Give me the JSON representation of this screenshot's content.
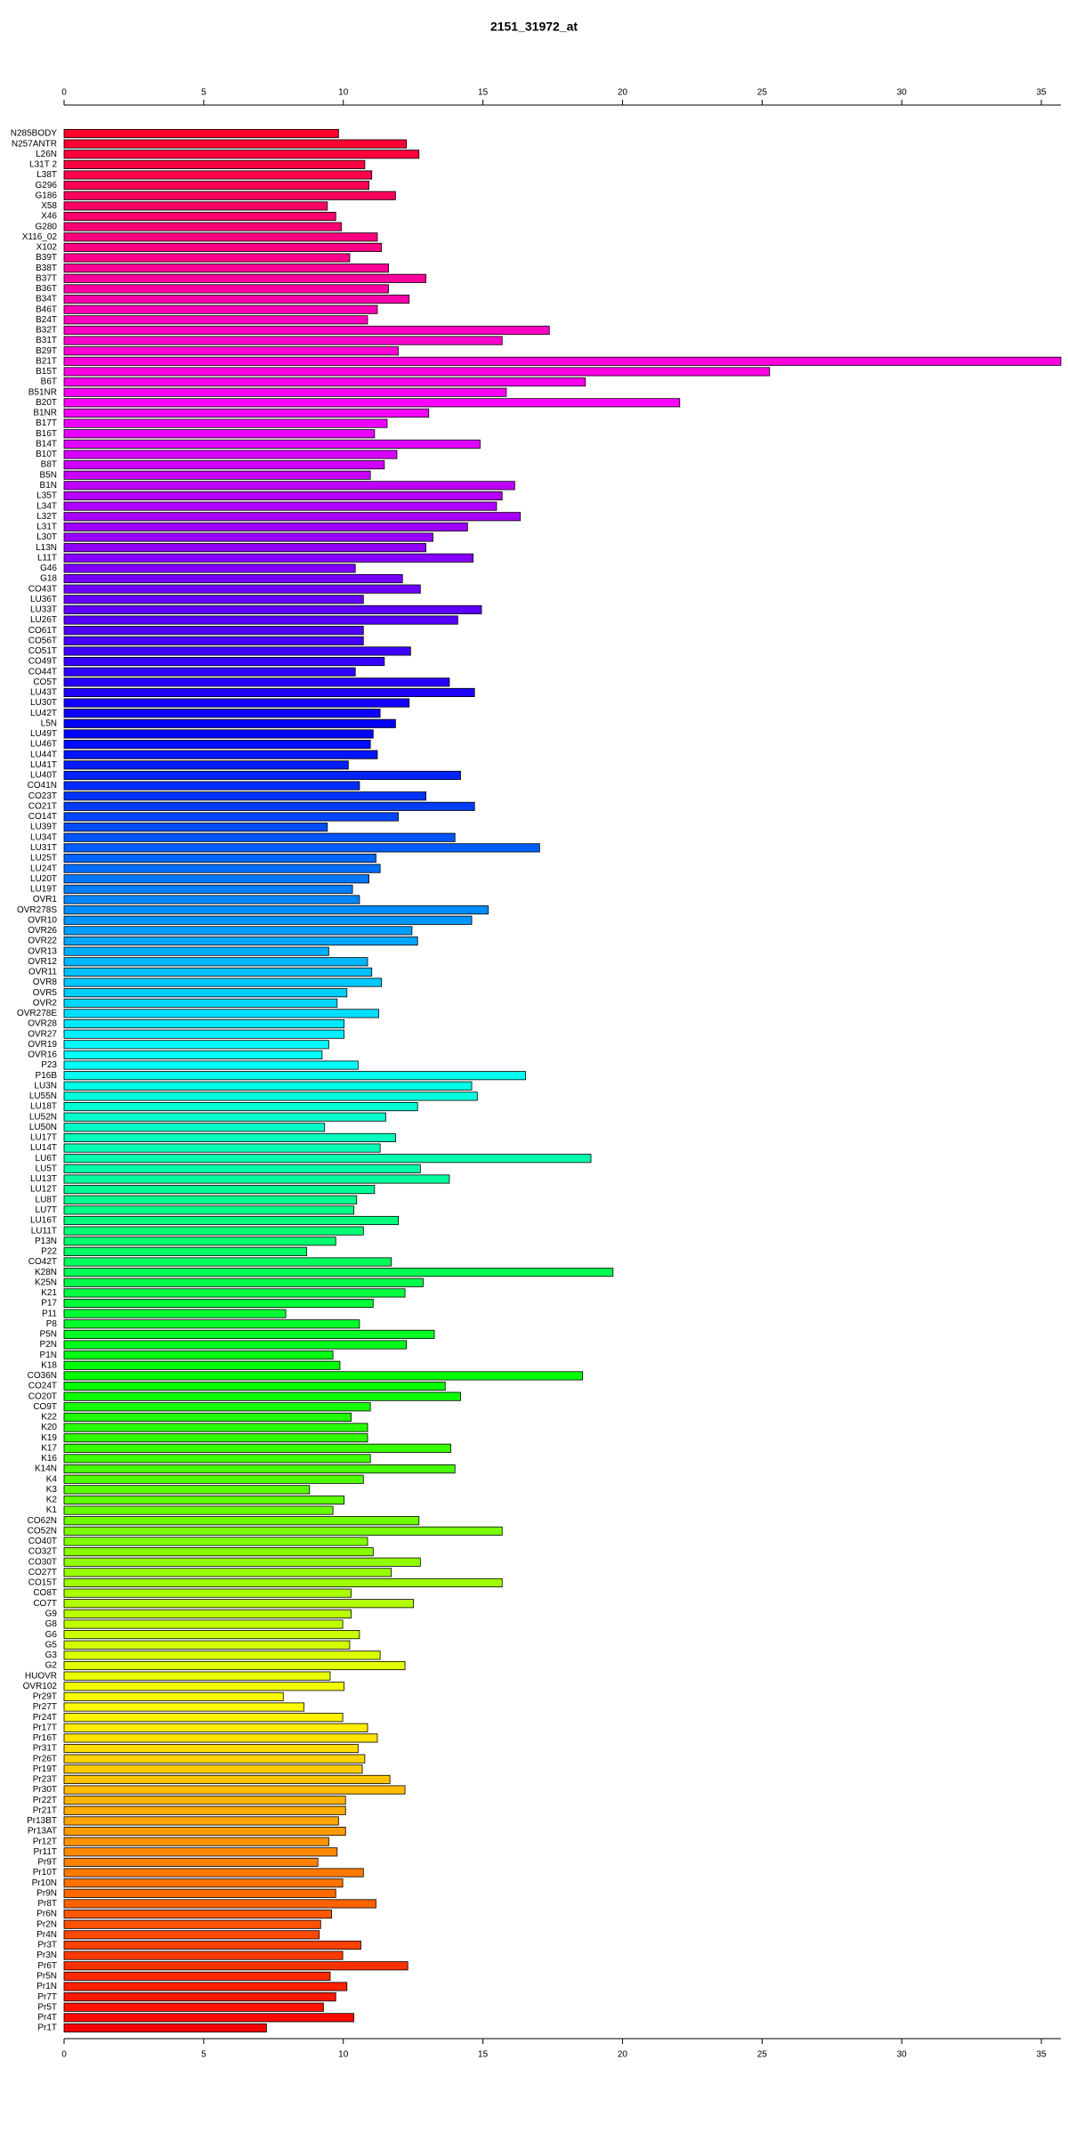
{
  "chart_data": {
    "type": "barh",
    "title": "2151_31972_at",
    "categories": [
      "N285BODY",
      "N257ANTR",
      "L26N",
      "L31T 2",
      "L38T",
      "G296",
      "G186",
      "X58",
      "X46",
      "G280",
      "X116_02",
      "X102",
      "B39T",
      "B38T",
      "B37T",
      "B36T",
      "B34T",
      "B46T",
      "B24T",
      "B32T",
      "B31T",
      "B29T",
      "B21T",
      "B15T",
      "B6T",
      "B51NR",
      "B20T",
      "B1NR",
      "B17T",
      "B16T",
      "B14T",
      "B10T",
      "B8T",
      "B5N",
      "B1N",
      "L35T",
      "L34T",
      "L32T",
      "L31T",
      "L30T",
      "L13N",
      "L11T",
      "G46",
      "G18",
      "CO43T",
      "LU36T",
      "LU33T",
      "LU26T",
      "CO61T",
      "CO56T",
      "CO51T",
      "CO49T",
      "CO44T",
      "CO5T",
      "LU43T",
      "LU30T",
      "LU42T",
      "L5N",
      "LU49T",
      "LU46T",
      "LU44T",
      "LU41T",
      "LU40T",
      "CO41N",
      "CO23T",
      "CO21T",
      "CO14T",
      "LU39T",
      "LU34T",
      "LU31T",
      "LU25T",
      "LU24T",
      "LU20T",
      "LU19T",
      "OVR1",
      "OVR278S",
      "OVR10",
      "OVR26",
      "OVR22",
      "OVR13",
      "OVR12",
      "OVR11",
      "OVR8",
      "OVR5",
      "OVR2",
      "OVR278E",
      "OVR28",
      "OVR27",
      "OVR19",
      "OVR16",
      "P23",
      "P16B",
      "LU3N",
      "LU55N",
      "LU18T",
      "LU52N",
      "LU50N",
      "LU17T",
      "LU14T",
      "LU6T",
      "LU5T",
      "LU13T",
      "LU12T",
      "LU8T",
      "LU7T",
      "LU16T",
      "LU11T",
      "P13N",
      "P22",
      "CO42T",
      "K28N",
      "K25N",
      "K21",
      "P17",
      "P11",
      "P8",
      "P5N",
      "P2N",
      "P1N",
      "K18",
      "CO36N",
      "CO24T",
      "CO20T",
      "CO9T",
      "K22",
      "K20",
      "K19",
      "K17",
      "K16",
      "K14N",
      "K4",
      "K3",
      "K2",
      "K1",
      "CO62N",
      "CO52N",
      "CO40T",
      "CO32T",
      "CO30T",
      "CO27T",
      "CO15T",
      "CO8T",
      "CO7T",
      "G9",
      "G8",
      "G6",
      "G5",
      "G3",
      "G2",
      "HUOVR",
      "OVR102",
      "Pr29T",
      "Pr27T",
      "Pr24T",
      "Pr17T",
      "Pr16T",
      "Pr31T",
      "Pr26T",
      "Pr19T",
      "Pr23T",
      "Pr30T",
      "Pr22T",
      "Pr21T",
      "Pr13BT",
      "Pr13AT",
      "Pr12T",
      "Pr11T",
      "Pr9T",
      "Pr10T",
      "Pr10N",
      "Pr9N",
      "Pr8T",
      "Pr6N",
      "Pr2N",
      "Pr4N",
      "Pr3T",
      "Pr3N",
      "Pr6T",
      "Pr5N",
      "Pr1N",
      "Pr7T",
      "Pr5T",
      "Pr4T",
      "Pr1T"
    ],
    "values": [
      9.83,
      12.26,
      12.71,
      10.77,
      11.02,
      10.92,
      11.87,
      9.43,
      9.73,
      9.93,
      11.22,
      11.37,
      10.23,
      11.62,
      12.96,
      11.62,
      12.36,
      11.22,
      10.87,
      17.38,
      15.69,
      11.97,
      35.7,
      25.27,
      18.67,
      15.84,
      22.05,
      13.06,
      11.57,
      11.12,
      14.9,
      11.92,
      11.47,
      10.97,
      16.14,
      15.69,
      15.49,
      16.34,
      14.45,
      13.21,
      12.96,
      14.65,
      10.43,
      12.12,
      12.76,
      10.72,
      14.95,
      14.1,
      10.72,
      10.72,
      12.41,
      11.47,
      10.43,
      13.8,
      14.7,
      12.36,
      11.32,
      11.87,
      11.07,
      10.97,
      11.22,
      10.18,
      14.2,
      10.58,
      12.96,
      14.7,
      11.97,
      9.43,
      14.0,
      17.03,
      11.17,
      11.32,
      10.92,
      10.33,
      10.58,
      15.19,
      14.6,
      12.46,
      12.66,
      9.48,
      10.87,
      11.02,
      11.37,
      10.13,
      9.78,
      11.27,
      10.03,
      10.03,
      9.48,
      9.24,
      10.53,
      16.53,
      14.6,
      14.8,
      12.66,
      11.52,
      9.33,
      11.87,
      11.32,
      18.87,
      12.76,
      13.8,
      11.12,
      10.48,
      10.38,
      11.97,
      10.72,
      9.73,
      8.69,
      11.72,
      19.66,
      12.86,
      12.21,
      11.07,
      7.94,
      10.58,
      13.26,
      12.26,
      9.63,
      9.88,
      18.57,
      13.65,
      14.2,
      10.97,
      10.28,
      10.87,
      10.87,
      13.85,
      10.97,
      14.0,
      10.72,
      8.79,
      10.03,
      9.63,
      12.71,
      15.69,
      10.87,
      11.07,
      12.76,
      11.72,
      15.69,
      10.28,
      12.51,
      10.28,
      9.98,
      10.58,
      10.23,
      11.32,
      12.21,
      9.53,
      10.03,
      7.85,
      8.59,
      9.98,
      10.87,
      11.22,
      10.53,
      10.77,
      10.68,
      11.67,
      12.21,
      10.08,
      10.08,
      9.83,
      10.08,
      9.48,
      9.78,
      9.09,
      10.72,
      9.98,
      9.73,
      11.17,
      9.58,
      9.19,
      9.14,
      10.63,
      9.98,
      12.31,
      9.53,
      10.13,
      9.73,
      9.29,
      10.38,
      7.25
    ],
    "color_hue_range": [
      350,
      0
    ],
    "xlim": [
      0,
      35.7
    ],
    "xticks": [
      0,
      5,
      10,
      15,
      20,
      25,
      30,
      35
    ]
  }
}
